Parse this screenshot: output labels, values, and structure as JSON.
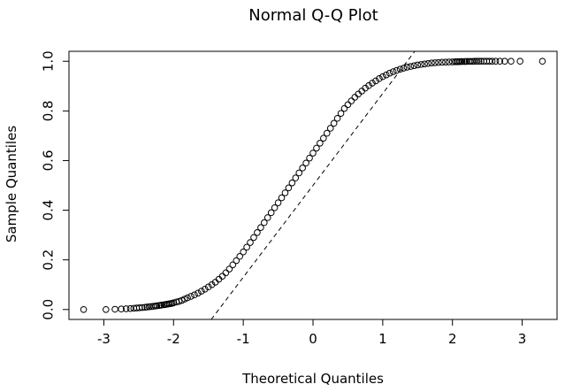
{
  "chart_data": {
    "type": "scatter",
    "title": "Normal Q-Q Plot",
    "xlabel": "Theoretical Quantiles",
    "ylabel": "Sample Quantiles",
    "xlim": [
      -3.5,
      3.5
    ],
    "ylim": [
      -0.04,
      1.04
    ],
    "x_ticks": [
      -3,
      -2,
      -1,
      0,
      1,
      2,
      3
    ],
    "x_tick_labels": [
      "-3",
      "-2",
      "-1",
      "0",
      "1",
      "2",
      "3"
    ],
    "y_ticks": [
      0.0,
      0.2,
      0.4,
      0.6,
      0.8,
      1.0
    ],
    "y_tick_labels": [
      "0.0",
      "0.2",
      "0.4",
      "0.6",
      "0.8",
      "1.0"
    ],
    "grid": false,
    "marker": "open-circle",
    "reference_line": {
      "style": "dashed",
      "color": "#000000",
      "intercept": 0.5,
      "slope": 0.37
    },
    "series": [
      {
        "x": [
          -3.29,
          -2.97,
          -2.84,
          -2.75,
          -2.68,
          -2.62,
          -2.57,
          -2.53,
          -2.49,
          -2.45,
          -2.41,
          -2.38,
          -2.35,
          -2.32,
          -2.29,
          -2.26,
          -2.24,
          -2.21,
          -2.19,
          -2.17,
          -2.14,
          -2.12,
          -2.1,
          -2.08,
          -2.06,
          -2.04,
          -2.02,
          -2.0,
          -1.96,
          -1.92,
          -1.88,
          -1.84,
          -1.8,
          -1.75,
          -1.7,
          -1.65,
          -1.6,
          -1.55,
          -1.5,
          -1.45,
          -1.4,
          -1.35,
          -1.3,
          -1.25,
          -1.2,
          -1.15,
          -1.1,
          -1.05,
          -1.0,
          -0.95,
          -0.9,
          -0.85,
          -0.8,
          -0.75,
          -0.7,
          -0.65,
          -0.6,
          -0.55,
          -0.5,
          -0.45,
          -0.4,
          -0.35,
          -0.3,
          -0.25,
          -0.2,
          -0.15,
          -0.1,
          -0.05,
          0.0,
          0.05,
          0.1,
          0.15,
          0.2,
          0.25,
          0.3,
          0.35,
          0.4,
          0.45,
          0.5,
          0.55,
          0.6,
          0.65,
          0.7,
          0.75,
          0.8,
          0.85,
          0.9,
          0.95,
          1.0,
          1.05,
          1.1,
          1.15,
          1.2,
          1.25,
          1.3,
          1.35,
          1.4,
          1.45,
          1.5,
          1.55,
          1.6,
          1.65,
          1.7,
          1.75,
          1.8,
          1.85,
          1.9,
          1.95,
          2.0,
          2.04,
          2.06,
          2.08,
          2.1,
          2.12,
          2.14,
          2.17,
          2.19,
          2.21,
          2.24,
          2.26,
          2.29,
          2.32,
          2.35,
          2.38,
          2.41,
          2.45,
          2.49,
          2.53,
          2.57,
          2.62,
          2.68,
          2.75,
          2.84,
          2.97,
          3.29
        ],
        "y": [
          0.0,
          0.0,
          0.001,
          0.002,
          0.003,
          0.004,
          0.005,
          0.006,
          0.007,
          0.008,
          0.009,
          0.01,
          0.011,
          0.012,
          0.013,
          0.014,
          0.015,
          0.016,
          0.017,
          0.018,
          0.019,
          0.02,
          0.021,
          0.022,
          0.023,
          0.024,
          0.025,
          0.027,
          0.03,
          0.033,
          0.037,
          0.042,
          0.047,
          0.053,
          0.059,
          0.066,
          0.074,
          0.082,
          0.091,
          0.1,
          0.11,
          0.122,
          0.134,
          0.148,
          0.163,
          0.18,
          0.197,
          0.214,
          0.232,
          0.251,
          0.27,
          0.29,
          0.31,
          0.33,
          0.35,
          0.37,
          0.39,
          0.41,
          0.43,
          0.45,
          0.47,
          0.49,
          0.51,
          0.53,
          0.55,
          0.57,
          0.59,
          0.61,
          0.63,
          0.65,
          0.67,
          0.69,
          0.71,
          0.73,
          0.75,
          0.77,
          0.79,
          0.81,
          0.825,
          0.84,
          0.855,
          0.868,
          0.88,
          0.892,
          0.902,
          0.912,
          0.921,
          0.93,
          0.938,
          0.945,
          0.952,
          0.958,
          0.963,
          0.968,
          0.972,
          0.976,
          0.979,
          0.982,
          0.985,
          0.987,
          0.989,
          0.991,
          0.993,
          0.994,
          0.995,
          0.996,
          0.9965,
          0.997,
          0.9975,
          0.998,
          0.998,
          0.9985,
          0.9985,
          0.999,
          0.999,
          0.999,
          0.999,
          0.9995,
          0.9995,
          0.9995,
          0.9995,
          1.0,
          1.0,
          1.0,
          1.0,
          1.0,
          1.0,
          1.0,
          1.0,
          1.0,
          1.0,
          1.0,
          1.0,
          1.0,
          1.0
        ]
      }
    ]
  }
}
